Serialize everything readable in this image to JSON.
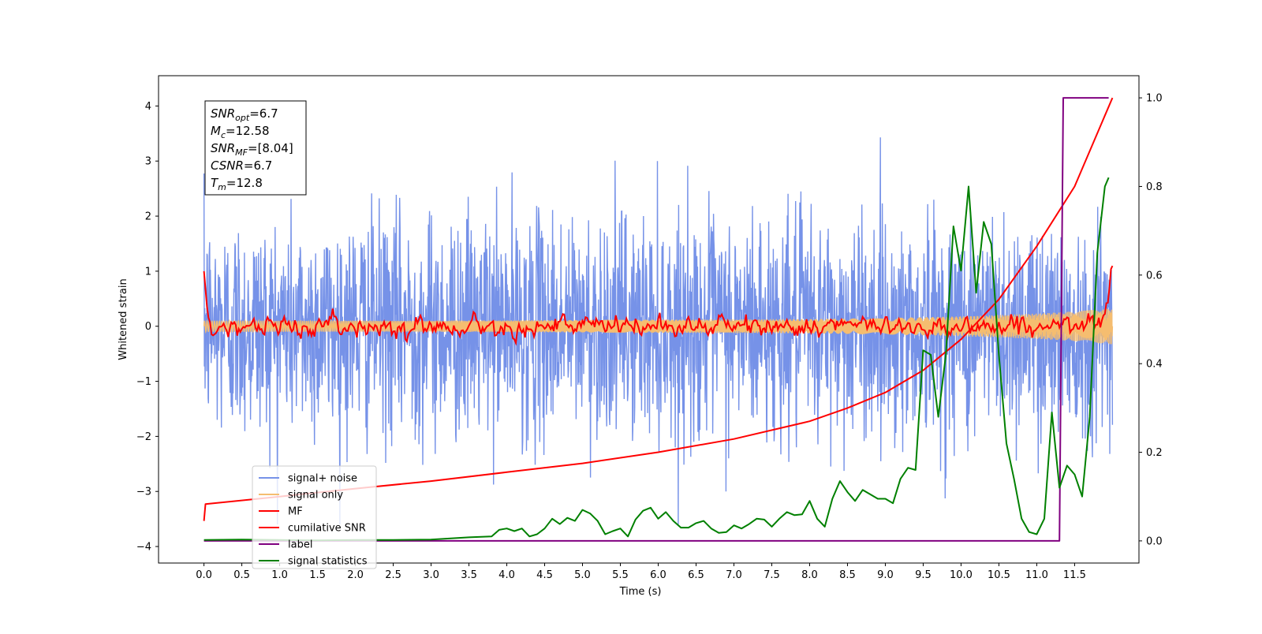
{
  "chart_data": {
    "type": "line",
    "xlabel": "Time (s)",
    "ylabel": "Whitened strain",
    "xlim": [
      -0.6,
      12.35
    ],
    "ylim_left": [
      -4.3,
      4.55
    ],
    "ylim_right": [
      -0.05,
      1.05
    ],
    "x_ticks": [
      0.0,
      0.5,
      1.0,
      1.5,
      2.0,
      2.5,
      3.0,
      3.5,
      4.0,
      4.5,
      5.0,
      5.5,
      6.0,
      6.5,
      7.0,
      7.5,
      8.0,
      8.5,
      9.0,
      9.5,
      10.0,
      10.5,
      11.0,
      11.5
    ],
    "x_tick_labels": [
      "0.0",
      "0.5",
      "1.0",
      "1.5",
      "2.0",
      "2.5",
      "3.0",
      "3.5",
      "4.0",
      "4.5",
      "5.0",
      "5.5",
      "6.0",
      "6.5",
      "7.0",
      "7.5",
      "8.0",
      "8.5",
      "9.0",
      "9.5",
      "10.0",
      "10.5",
      "11.0",
      "11.5"
    ],
    "y_left_ticks": [
      -4,
      -3,
      -2,
      -1,
      0,
      1,
      2,
      3,
      4
    ],
    "y_left_tick_labels": [
      "−4",
      "−3",
      "−2",
      "−1",
      "0",
      "1",
      "2",
      "3",
      "4"
    ],
    "y_right_ticks": [
      0.0,
      0.2,
      0.4,
      0.6,
      0.8,
      1.0
    ],
    "y_right_tick_labels": [
      "0.0",
      "0.2",
      "0.4",
      "0.6",
      "0.8",
      "1.0"
    ],
    "grid": false,
    "legend_position": "lower-left",
    "annotation": {
      "lines": [
        {
          "base": "SNR",
          "sub": "opt",
          "rest": "=6.7"
        },
        {
          "base": "M",
          "sub": "c",
          "rest": "=12.58"
        },
        {
          "base": "SNR",
          "sub": "MF",
          "rest": "=[8.04]"
        },
        {
          "base": "CSNR",
          "sub": "",
          "rest": "=6.7"
        },
        {
          "base": "T",
          "sub": "m",
          "rest": "=12.8"
        }
      ]
    },
    "series": [
      {
        "name": "signal+ noise",
        "axis": "left",
        "color": "#7692e8",
        "style": "noise",
        "x_range": [
          0.0,
          12.0
        ],
        "amplitude_std": 1.0,
        "peak_max": 4.15,
        "peak_min": -3.6
      },
      {
        "name": "signal only",
        "axis": "left",
        "color": "#f5bd70",
        "style": "chirp",
        "x_range": [
          0.0,
          12.0
        ],
        "envelope_x": [
          0.0,
          3.0,
          6.0,
          8.0,
          9.0,
          10.0,
          11.0,
          11.5,
          12.0
        ],
        "envelope_y": [
          0.1,
          0.1,
          0.12,
          0.13,
          0.15,
          0.18,
          0.23,
          0.27,
          0.33
        ]
      },
      {
        "name": "MF",
        "axis": "left",
        "color": "#ff0000",
        "style": "noisy-line",
        "x_range": [
          0.0,
          12.0
        ],
        "x": [
          0.0,
          0.05,
          0.12,
          0.2,
          12.0
        ],
        "y": [
          1.0,
          0.2,
          -0.1,
          0.0,
          0.0
        ],
        "end_x": [
          11.85,
          11.9,
          11.95,
          12.0
        ],
        "end_y": [
          0.0,
          0.3,
          0.7,
          1.0
        ],
        "noise_std": 0.08
      },
      {
        "name": "cumilative SNR",
        "axis": "right",
        "color": "#ff0000",
        "style": "line",
        "x": [
          0.0,
          0.02,
          1.0,
          2.0,
          3.0,
          4.0,
          5.0,
          6.0,
          7.0,
          8.0,
          8.5,
          9.0,
          9.5,
          10.0,
          10.5,
          11.0,
          11.5,
          12.0
        ],
        "y": [
          0.045,
          0.083,
          0.1,
          0.118,
          0.135,
          0.155,
          0.175,
          0.2,
          0.23,
          0.27,
          0.3,
          0.335,
          0.385,
          0.455,
          0.545,
          0.665,
          0.8,
          1.0
        ]
      },
      {
        "name": "label",
        "axis": "right",
        "color": "#800080",
        "style": "step",
        "x": [
          0.0,
          11.3,
          11.35,
          11.95
        ],
        "y": [
          0.0,
          0.0,
          1.0,
          1.0
        ]
      },
      {
        "name": "signal statistics",
        "axis": "right",
        "color": "#008000",
        "style": "line",
        "x": [
          0.0,
          0.5,
          1.0,
          1.5,
          2.0,
          2.5,
          3.0,
          3.5,
          3.8,
          3.9,
          4.0,
          4.1,
          4.2,
          4.3,
          4.4,
          4.5,
          4.6,
          4.7,
          4.8,
          4.9,
          5.0,
          5.1,
          5.2,
          5.3,
          5.4,
          5.5,
          5.6,
          5.7,
          5.8,
          5.9,
          6.0,
          6.1,
          6.2,
          6.3,
          6.4,
          6.5,
          6.6,
          6.7,
          6.8,
          6.9,
          7.0,
          7.1,
          7.2,
          7.3,
          7.4,
          7.5,
          7.6,
          7.7,
          7.8,
          7.9,
          8.0,
          8.1,
          8.2,
          8.3,
          8.4,
          8.5,
          8.6,
          8.7,
          8.8,
          8.9,
          9.0,
          9.1,
          9.2,
          9.3,
          9.4,
          9.5,
          9.6,
          9.7,
          9.8,
          9.9,
          10.0,
          10.1,
          10.2,
          10.3,
          10.4,
          10.5,
          10.6,
          10.7,
          10.8,
          10.9,
          11.0,
          11.1,
          11.2,
          11.3,
          11.4,
          11.5,
          11.6,
          11.7,
          11.8,
          11.9,
          11.95
        ],
        "y": [
          0.002,
          0.003,
          0.002,
          0.001,
          0.002,
          0.002,
          0.003,
          0.008,
          0.01,
          0.025,
          0.028,
          0.022,
          0.028,
          0.01,
          0.015,
          0.028,
          0.05,
          0.038,
          0.052,
          0.045,
          0.07,
          0.062,
          0.045,
          0.015,
          0.022,
          0.028,
          0.01,
          0.048,
          0.068,
          0.075,
          0.05,
          0.065,
          0.045,
          0.03,
          0.03,
          0.04,
          0.045,
          0.028,
          0.018,
          0.02,
          0.035,
          0.028,
          0.038,
          0.05,
          0.048,
          0.032,
          0.05,
          0.065,
          0.058,
          0.06,
          0.09,
          0.05,
          0.032,
          0.095,
          0.135,
          0.11,
          0.09,
          0.115,
          0.105,
          0.095,
          0.095,
          0.085,
          0.14,
          0.165,
          0.16,
          0.43,
          0.42,
          0.28,
          0.42,
          0.71,
          0.61,
          0.8,
          0.56,
          0.72,
          0.67,
          0.42,
          0.22,
          0.14,
          0.05,
          0.02,
          0.015,
          0.05,
          0.29,
          0.12,
          0.17,
          0.15,
          0.1,
          0.28,
          0.65,
          0.8,
          0.82
        ]
      }
    ]
  }
}
